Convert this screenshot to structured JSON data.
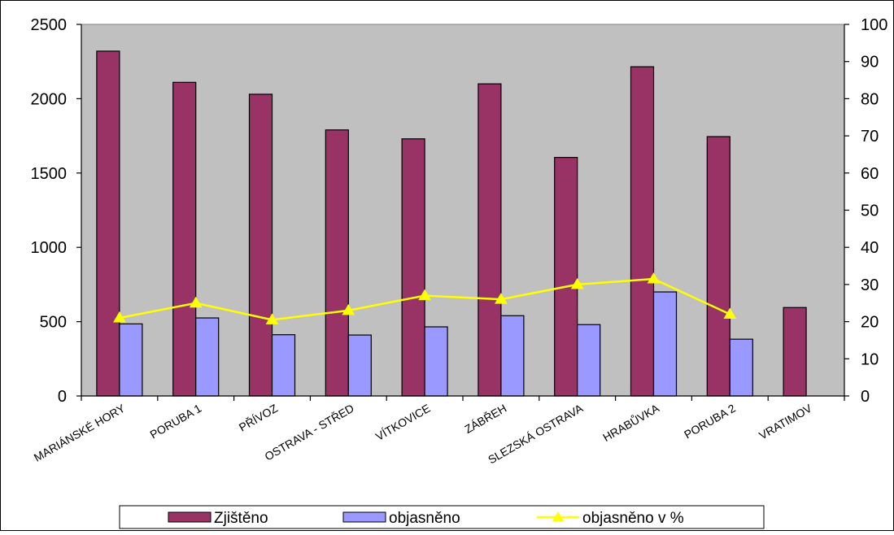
{
  "chart_data": {
    "type": "bar",
    "categories": [
      "MARIÁNSKÉ HORY",
      "PORUBA 1",
      "PŘÍVOZ",
      "OSTRAVA - STŘED",
      "VÍTKOVICE",
      "ZÁBŘEH",
      "SLEZSKÁ OSTRAVA",
      "HRABŮVKA",
      "PORUBA 2",
      "VRATIMOV"
    ],
    "series": [
      {
        "name": "Zjištěno",
        "kind": "bar",
        "axis": "left",
        "color": "#993366",
        "values": [
          2320,
          2110,
          2030,
          1790,
          1730,
          2100,
          1605,
          2215,
          1745,
          595
        ]
      },
      {
        "name": "objasněno",
        "kind": "bar",
        "axis": "left",
        "color": "#9999FF",
        "values": [
          485,
          525,
          412,
          410,
          465,
          540,
          480,
          700,
          382,
          null
        ]
      },
      {
        "name": "objasněno v %",
        "kind": "line",
        "axis": "right",
        "color": "#FFFF00",
        "values": [
          21,
          25,
          20.5,
          23,
          27,
          26,
          30,
          31.5,
          22,
          null
        ]
      }
    ],
    "y_left": {
      "min": 0,
      "max": 2500,
      "ticks": [
        0,
        500,
        1000,
        1500,
        2000,
        2500
      ]
    },
    "y_right": {
      "min": 0,
      "max": 100,
      "ticks": [
        0,
        10,
        20,
        30,
        40,
        50,
        60,
        70,
        80,
        90,
        100
      ]
    },
    "plot_background": "#C0C0C0",
    "grid": false,
    "legend_position": "bottom"
  }
}
